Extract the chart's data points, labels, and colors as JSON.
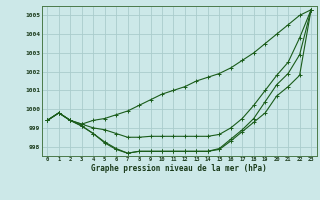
{
  "bg_color": "#cce8e8",
  "grid_color": "#aacccc",
  "line_color": "#1a5c1a",
  "marker": "+",
  "title": "Graphe pression niveau de la mer (hPa)",
  "xlim": [
    -0.5,
    23.5
  ],
  "ylim": [
    997.5,
    1005.5
  ],
  "yticks": [
    998,
    999,
    1000,
    1001,
    1002,
    1003,
    1004,
    1005
  ],
  "xticks": [
    0,
    1,
    2,
    3,
    4,
    5,
    6,
    7,
    8,
    9,
    10,
    11,
    12,
    13,
    14,
    15,
    16,
    17,
    18,
    19,
    20,
    21,
    22,
    23
  ],
  "series": [
    [
      999.4,
      999.8,
      999.4,
      999.2,
      999.4,
      999.5,
      999.7,
      999.9,
      1000.2,
      1000.5,
      1000.8,
      1001.0,
      1001.2,
      1001.5,
      1001.7,
      1001.9,
      1002.2,
      1002.6,
      1003.0,
      1003.5,
      1004.0,
      1004.5,
      1005.0,
      1005.3
    ],
    [
      999.4,
      999.8,
      999.4,
      999.2,
      999.0,
      998.9,
      998.7,
      998.5,
      998.5,
      998.55,
      998.55,
      998.55,
      998.55,
      998.55,
      998.55,
      998.65,
      999.0,
      999.5,
      1000.2,
      1001.0,
      1001.8,
      1002.5,
      1003.8,
      1005.3
    ],
    [
      999.4,
      999.8,
      999.4,
      999.1,
      998.7,
      998.2,
      997.85,
      997.65,
      997.75,
      997.75,
      997.75,
      997.75,
      997.75,
      997.75,
      997.75,
      997.85,
      998.3,
      998.8,
      999.3,
      999.8,
      1000.7,
      1001.2,
      1001.8,
      1005.3
    ],
    [
      999.4,
      999.8,
      999.4,
      999.1,
      998.7,
      998.25,
      997.9,
      997.65,
      997.75,
      997.75,
      997.75,
      997.75,
      997.75,
      997.75,
      997.75,
      997.9,
      998.4,
      998.9,
      999.5,
      1000.4,
      1001.3,
      1001.9,
      1002.9,
      1005.3
    ]
  ]
}
